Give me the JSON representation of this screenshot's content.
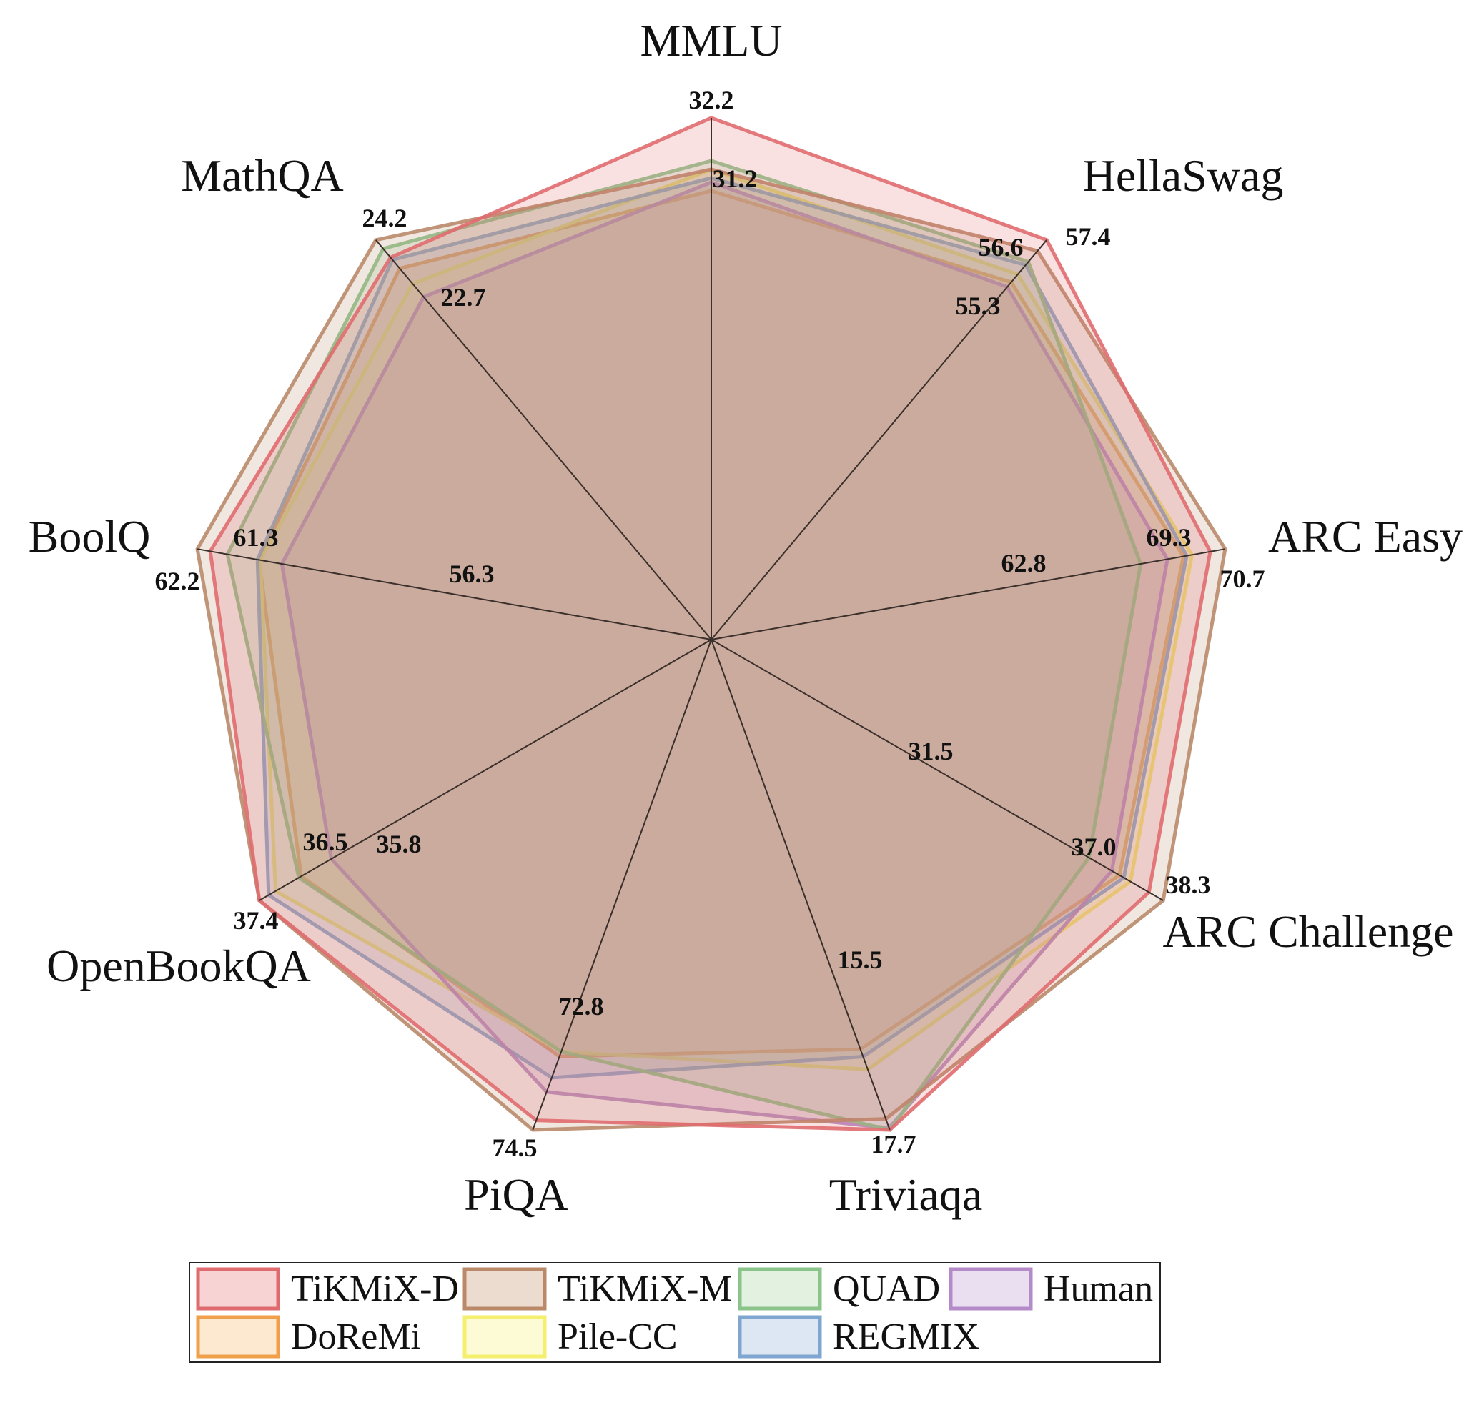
{
  "chart_data": {
    "type": "radar",
    "axes": [
      "MMLU",
      "HellaSwag",
      "ARC Easy",
      "ARC Challenge",
      "Triviaqa",
      "PiQA",
      "OpenBookQA",
      "BoolQ",
      "MathQA"
    ],
    "axis_ranges": [
      [
        31.2,
        32.2
      ],
      [
        55.3,
        57.4
      ],
      [
        62.8,
        70.7
      ],
      [
        31.5,
        38.3
      ],
      [
        15.5,
        17.7
      ],
      [
        72.8,
        74.5
      ],
      [
        35.8,
        37.4
      ],
      [
        56.3,
        62.2
      ],
      [
        22.7,
        24.2
      ]
    ],
    "tick_labels": [
      {
        "axis": 0,
        "text": "32.2"
      },
      {
        "axis": 0,
        "text": "31.2"
      },
      {
        "axis": 1,
        "text": "57.4"
      },
      {
        "axis": 1,
        "text": "56.6"
      },
      {
        "axis": 1,
        "text": "55.3"
      },
      {
        "axis": 2,
        "text": "69.3"
      },
      {
        "axis": 2,
        "text": "70.7"
      },
      {
        "axis": 2,
        "text": "62.8"
      },
      {
        "axis": 3,
        "text": "31.5"
      },
      {
        "axis": 3,
        "text": "37.0"
      },
      {
        "axis": 3,
        "text": "38.3"
      },
      {
        "axis": 4,
        "text": "15.5"
      },
      {
        "axis": 4,
        "text": "17.7"
      },
      {
        "axis": 5,
        "text": "72.8"
      },
      {
        "axis": 5,
        "text": "74.5"
      },
      {
        "axis": 6,
        "text": "36.5"
      },
      {
        "axis": 6,
        "text": "35.8"
      },
      {
        "axis": 6,
        "text": "37.4"
      },
      {
        "axis": 7,
        "text": "61.3"
      },
      {
        "axis": 7,
        "text": "62.2"
      },
      {
        "axis": 7,
        "text": "56.3"
      },
      {
        "axis": 8,
        "text": "24.2"
      },
      {
        "axis": 8,
        "text": "22.7"
      }
    ],
    "series": [
      {
        "name": "DoReMi",
        "color": "#f0a04b",
        "fill": "#fde8d0",
        "values": [
          31.35,
          56.05,
          66.8,
          34.3,
          15.5,
          72.95,
          36.5,
          57.9,
          23.55
        ]
      },
      {
        "name": "Pile-CC",
        "color": "#f5ef6e",
        "fill": "#fdfbd5",
        "values": [
          31.6,
          56.3,
          67.6,
          35.3,
          16.05,
          72.85,
          37.05,
          57.8,
          23.2
        ]
      },
      {
        "name": "REGMIX",
        "color": "#7fa6d1",
        "fill": "#dde7f3",
        "values": [
          31.5,
          56.6,
          67.1,
          34.7,
          15.7,
          73.4,
          37.2,
          58.0,
          23.75
        ]
      },
      {
        "name": "Human",
        "color": "#b48ac9",
        "fill": "#eadff1",
        "values": [
          31.45,
          55.9,
          65.3,
          33.6,
          17.65,
          73.7,
          35.85,
          56.3,
          22.9
        ]
      },
      {
        "name": "QUAD",
        "color": "#8bc48a",
        "fill": "#e3f1e1",
        "values": [
          31.7,
          56.7,
          62.8,
          31.5,
          17.7,
          72.85,
          36.55,
          60.1,
          24.0
        ]
      },
      {
        "name": "TiKMiX-M",
        "color": "#b9896a",
        "fill": "#ecdcd0",
        "values": [
          31.6,
          57.05,
          70.7,
          38.3,
          17.4,
          74.5,
          37.4,
          62.2,
          24.2
        ]
      },
      {
        "name": "TiKMiX-D",
        "color": "#e06b6f",
        "fill": "#f7d3d3",
        "values": [
          32.2,
          57.4,
          69.3,
          37.0,
          17.7,
          74.3,
          37.4,
          61.3,
          23.8
        ]
      }
    ],
    "grid": false,
    "legend_position": "bottom"
  },
  "legend": {
    "items": [
      {
        "label": "TiKMiX-D",
        "color": "#e06b6f",
        "fill": "#f7d3d3"
      },
      {
        "label": "TiKMiX-M",
        "color": "#b9896a",
        "fill": "#ecdcd0"
      },
      {
        "label": "QUAD",
        "color": "#8bc48a",
        "fill": "#e3f1e1"
      },
      {
        "label": "Human",
        "color": "#b48ac9",
        "fill": "#eadff1"
      },
      {
        "label": "DoReMi",
        "color": "#f0a04b",
        "fill": "#fde8d0"
      },
      {
        "label": "Pile-CC",
        "color": "#f5ef6e",
        "fill": "#fdfbd5"
      },
      {
        "label": "REGMIX",
        "color": "#7fa6d1",
        "fill": "#dde7f3"
      }
    ]
  }
}
